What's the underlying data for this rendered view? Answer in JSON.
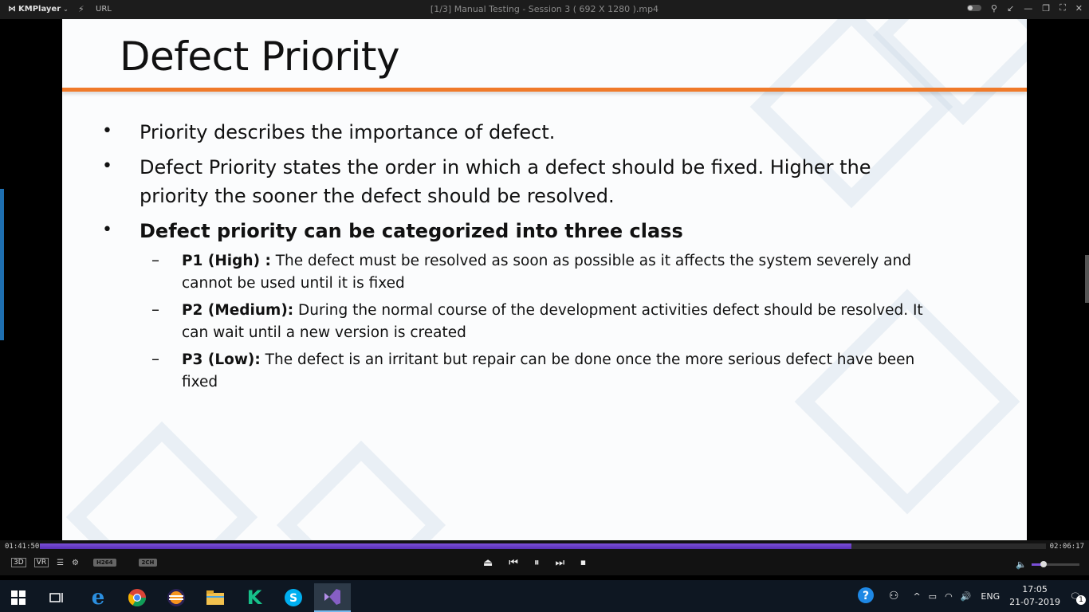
{
  "app": {
    "name": "KMPlayer",
    "url_label": "URL",
    "window_title": "[1/3] Manual Testing - Session 3 ( 692 X 1280 ).mp4"
  },
  "slide": {
    "title": "Defect Priority",
    "bullets": [
      "Priority describes the importance of defect.",
      "Defect Priority states the order in which a defect should be fixed. Higher the",
      "priority the sooner the defect should be resolved.",
      "Defect priority can be categorized into three class"
    ],
    "sub": [
      {
        "label": "P1 (High) :",
        "text": " The defect must be resolved as soon as possible as it affects the system severely and",
        "text2": "cannot be used until it is fixed"
      },
      {
        "label": "P2 (Medium):",
        "text": " During the normal course of the development activities defect should be resolved. It",
        "text2": "can wait until a new version is created"
      },
      {
        "label": "P3 (Low):",
        "text": " The defect is an irritant but repair can be done once the more serious defect have been",
        "text2": "fixed"
      }
    ]
  },
  "player": {
    "elapsed": "01:41:50",
    "total": "02:06:17",
    "progress": 0.807,
    "volume": 0.25,
    "btn_3d": "3D",
    "btn_vr": "VR",
    "codec_badge": "H264",
    "channel_badge": "2CH"
  },
  "taskbar": {
    "apps": [
      "windows-start-icon",
      "task-view-icon",
      "edge-icon",
      "chrome-icon",
      "eclipse-icon",
      "file-explorer-icon",
      "kmplayer-k-icon",
      "skype-icon",
      "visual-studio-icon"
    ],
    "language": "ENG",
    "time": "17:05",
    "date": "21-07-2019",
    "notifications": "1"
  }
}
